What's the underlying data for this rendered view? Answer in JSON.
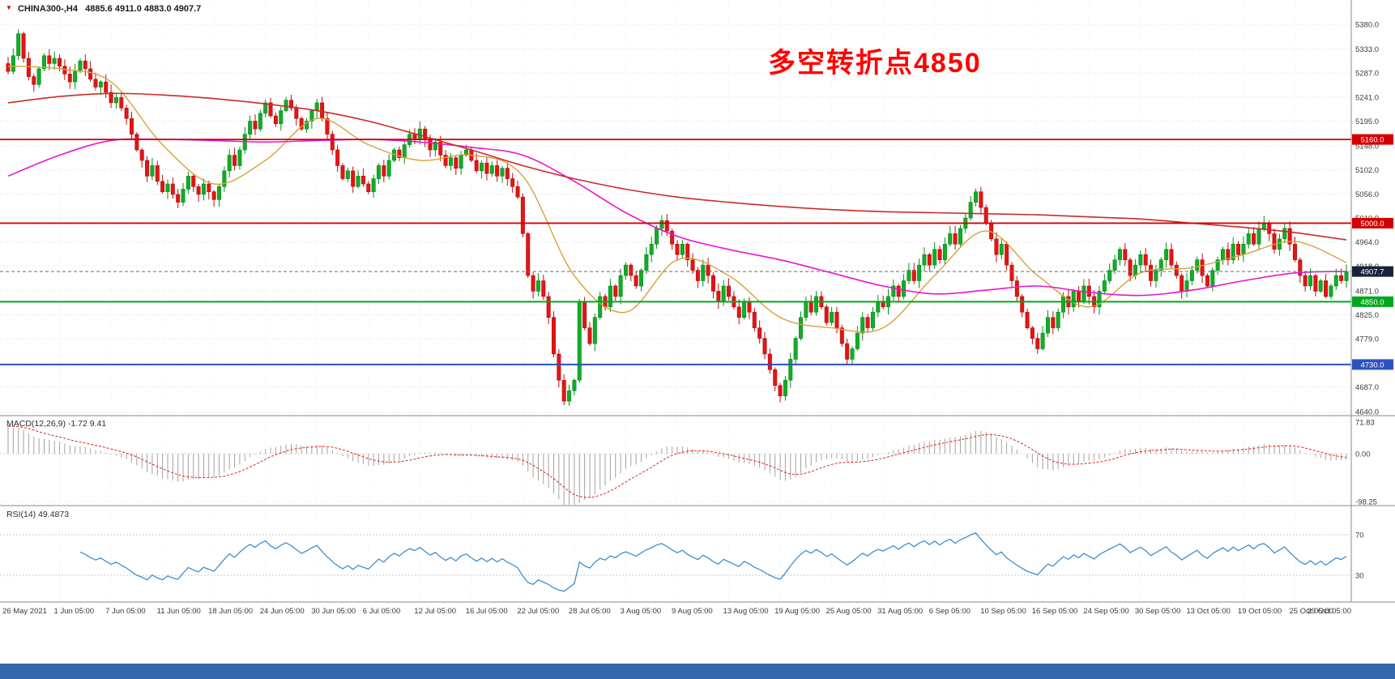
{
  "window": {
    "bottom_bar_color": "#3468ae"
  },
  "header": {
    "direction_icon": "▼",
    "symbol_period": "CHINA300-,H4",
    "ohlc": "4885.6 4911.0 4883.0 4907.7"
  },
  "annotation": {
    "text": "多空转折点4850",
    "color": "#ff0000"
  },
  "price_axis": {
    "ticks": [
      5380.0,
      5333.0,
      5287.0,
      5241.0,
      5195.0,
      5148.0,
      5102.0,
      5056.0,
      5010.0,
      4964.0,
      4918.0,
      4871.0,
      4825.0,
      4779.0,
      4733.0,
      4687.0,
      4640.0
    ]
  },
  "levels": {
    "hlines": [
      {
        "price": 5160.0,
        "color": "#d40000",
        "label": "5160.0",
        "width": 1.8
      },
      {
        "price": 5000.0,
        "color": "#d40000",
        "label": "5000.0",
        "width": 1.8
      },
      {
        "price": 4850.0,
        "color": "#00a81c",
        "label": "4850.0",
        "width": 2.0
      },
      {
        "price": 4730.0,
        "color": "#2b53c0",
        "label": "4730.0",
        "width": 2.0
      }
    ],
    "current_price": {
      "value": 4907.7,
      "label": "4907.7",
      "badge_color": "#16233a"
    }
  },
  "macd_panel": {
    "label": "MACD(12,26,9) -1.72 9.41",
    "axis_ticks": [
      "71.83",
      "0.00",
      "-98.25"
    ],
    "axis_values": [
      71.83,
      0.0,
      -98.25
    ]
  },
  "rsi_panel": {
    "label": "RSI(14) 49.4873",
    "levels": [
      70,
      30
    ]
  },
  "chart_data": {
    "type": "candlestick",
    "symbol": "CHINA300-",
    "timeframe": "H4",
    "title": "CHINA300- H4 candlestick chart with MACD and RSI",
    "y_range": [
      4640,
      5380
    ],
    "last_price": 4907.7,
    "up_color": "#0fae26",
    "up_stroke": "#0a8a1e",
    "down_color": "#e41414",
    "down_stroke": "#b80f0f",
    "candles_per_label": 10,
    "x_labels": [
      "26 May 2021",
      "1 Jun 05:00",
      "7 Jun 05:00",
      "11 Jun 05:00",
      "18 Jun 05:00",
      "24 Jun 05:00",
      "30 Jun 05:00",
      "6 Jul 05:00",
      "12 Jul 05:00",
      "16 Jul 05:00",
      "22 Jul 05:00",
      "28 Jul 05:00",
      "3 Aug 05:00",
      "9 Aug 05:00",
      "13 Aug 05:00",
      "19 Aug 05:00",
      "25 Aug 05:00",
      "31 Aug 05:00",
      "6 Sep 05:00",
      "10 Sep 05:00",
      "16 Sep 05:00",
      "24 Sep 05:00",
      "30 Sep 05:00",
      "13 Oct 05:00",
      "19 Oct 05:00",
      "25 Oct 05:00",
      "29 Oct 05:00"
    ],
    "closes": [
      5290,
      5320,
      5362,
      5315,
      5280,
      5265,
      5295,
      5320,
      5305,
      5315,
      5300,
      5285,
      5270,
      5290,
      5310,
      5295,
      5275,
      5260,
      5270,
      5250,
      5230,
      5240,
      5220,
      5200,
      5170,
      5140,
      5120,
      5090,
      5110,
      5080,
      5060,
      5075,
      5055,
      5040,
      5065,
      5090,
      5070,
      5055,
      5075,
      5060,
      5045,
      5070,
      5100,
      5130,
      5110,
      5140,
      5170,
      5195,
      5180,
      5210,
      5230,
      5205,
      5190,
      5215,
      5235,
      5220,
      5200,
      5180,
      5195,
      5215,
      5230,
      5200,
      5170,
      5140,
      5110,
      5085,
      5100,
      5070,
      5090,
      5075,
      5060,
      5085,
      5110,
      5090,
      5120,
      5140,
      5125,
      5150,
      5170,
      5160,
      5180,
      5160,
      5140,
      5155,
      5130,
      5110,
      5125,
      5105,
      5130,
      5140,
      5120,
      5100,
      5115,
      5095,
      5110,
      5090,
      5105,
      5085,
      5070,
      5050,
      4980,
      4900,
      4870,
      4890,
      4860,
      4820,
      4750,
      4700,
      4660,
      4680,
      4700,
      4850,
      4800,
      4770,
      4820,
      4860,
      4840,
      4880,
      4860,
      4900,
      4920,
      4900,
      4880,
      4910,
      4940,
      4960,
      4990,
      5005,
      4985,
      4960,
      4940,
      4960,
      4930,
      4910,
      4890,
      4920,
      4900,
      4870,
      4850,
      4880,
      4860,
      4840,
      4820,
      4850,
      4830,
      4800,
      4780,
      4750,
      4720,
      4690,
      4670,
      4700,
      4740,
      4780,
      4820,
      4850,
      4830,
      4860,
      4840,
      4810,
      4830,
      4800,
      4770,
      4740,
      4760,
      4790,
      4820,
      4800,
      4830,
      4850,
      4840,
      4860,
      4880,
      4860,
      4890,
      4910,
      4890,
      4920,
      4940,
      4920,
      4950,
      4930,
      4960,
      4980,
      4960,
      4990,
      5010,
      5040,
      5060,
      5030,
      5000,
      4970,
      4940,
      4960,
      4920,
      4890,
      4860,
      4830,
      4800,
      4780,
      4760,
      4790,
      4820,
      4800,
      4830,
      4860,
      4840,
      4870,
      4850,
      4880,
      4860,
      4840,
      4870,
      4890,
      4910,
      4930,
      4950,
      4930,
      4900,
      4920,
      4940,
      4920,
      4890,
      4910,
      4930,
      4950,
      4920,
      4900,
      4870,
      4890,
      4910,
      4930,
      4900,
      4880,
      4910,
      4930,
      4950,
      4930,
      4960,
      4940,
      4960,
      4980,
      4960,
      4990,
      5000,
      4980,
      4950,
      4970,
      4990,
      4960,
      4930,
      4900,
      4880,
      4900,
      4870,
      4890,
      4860,
      4880,
      4900,
      4890,
      4907.7
    ],
    "moving_averages": [
      {
        "name": "ma-fast",
        "color": "#d8a13a",
        "points_at_labels": [
          5300,
          5295,
          5270,
          5150,
          5075,
          5120,
          5200,
          5150,
          5120,
          5130,
          5090,
          4900,
          4830,
          4930,
          4900,
          4820,
          4800,
          4800,
          4900,
          4985,
          4900,
          4840,
          4905,
          4915,
          4940,
          4965,
          4925
        ]
      },
      {
        "name": "ma-mid",
        "color": "#e617d0",
        "points_at_labels": [
          5090,
          5130,
          5158,
          5160,
          5158,
          5155,
          5158,
          5160,
          5155,
          5145,
          5130,
          5080,
          5020,
          4975,
          4950,
          4930,
          4905,
          4880,
          4865,
          4872,
          4880,
          4868,
          4862,
          4872,
          4890,
          4905,
          4908
        ]
      },
      {
        "name": "ma-slow",
        "color": "#cc2a2a",
        "points_at_labels": [
          5230,
          5242,
          5248,
          5245,
          5238,
          5228,
          5215,
          5195,
          5168,
          5140,
          5110,
          5085,
          5065,
          5050,
          5040,
          5032,
          5026,
          5022,
          5020,
          5018,
          5016,
          5012,
          5008,
          5000,
          4992,
          4982,
          4968
        ]
      }
    ],
    "hlines": [
      5160.0,
      5000.0,
      4850.0,
      4730.0
    ],
    "indicators": {
      "macd": {
        "fast": 12,
        "slow": 26,
        "signal": 9,
        "display_values": [
          -1.72,
          9.41
        ],
        "axis_range": [
          71.83,
          -98.25
        ]
      },
      "rsi": {
        "period": 14,
        "value": 49.4873,
        "levels": [
          70,
          30
        ]
      }
    }
  }
}
